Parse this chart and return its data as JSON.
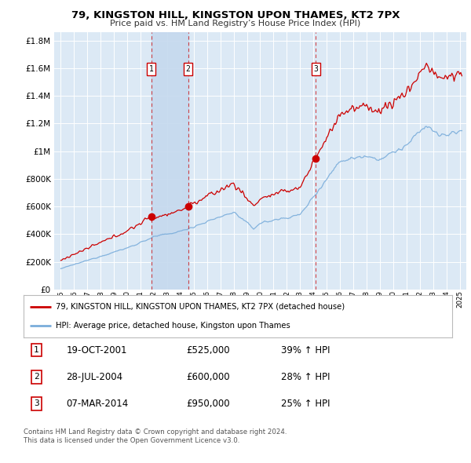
{
  "title": "79, KINGSTON HILL, KINGSTON UPON THAMES, KT2 7PX",
  "subtitle": "Price paid vs. HM Land Registry’s House Price Index (HPI)",
  "sales": [
    {
      "label": "1",
      "date": "19-OCT-2001",
      "price": 525000,
      "year": 2001.8
    },
    {
      "label": "2",
      "date": "28-JUL-2004",
      "price": 600000,
      "year": 2004.58
    },
    {
      "label": "3",
      "date": "07-MAR-2014",
      "price": 950000,
      "year": 2014.18
    }
  ],
  "legend_line1": "79, KINGSTON HILL, KINGSTON UPON THAMES, KT2 7PX (detached house)",
  "legend_line2": "HPI: Average price, detached house, Kingston upon Thames",
  "table_rows": [
    [
      "1",
      "19-OCT-2001",
      "£525,000",
      "39% ↑ HPI"
    ],
    [
      "2",
      "28-JUL-2004",
      "£600,000",
      "28% ↑ HPI"
    ],
    [
      "3",
      "07-MAR-2014",
      "£950,000",
      "25% ↑ HPI"
    ]
  ],
  "footnote1": "Contains HM Land Registry data © Crown copyright and database right 2024.",
  "footnote2": "This data is licensed under the Open Government Licence v3.0.",
  "background_color": "#ffffff",
  "plot_bg_color": "#dce9f5",
  "grid_color": "#ffffff",
  "red_line_color": "#cc0000",
  "blue_line_color": "#7aaddb",
  "shade_color": "#c5d9ee",
  "dashed_line_color": "#cc0000"
}
